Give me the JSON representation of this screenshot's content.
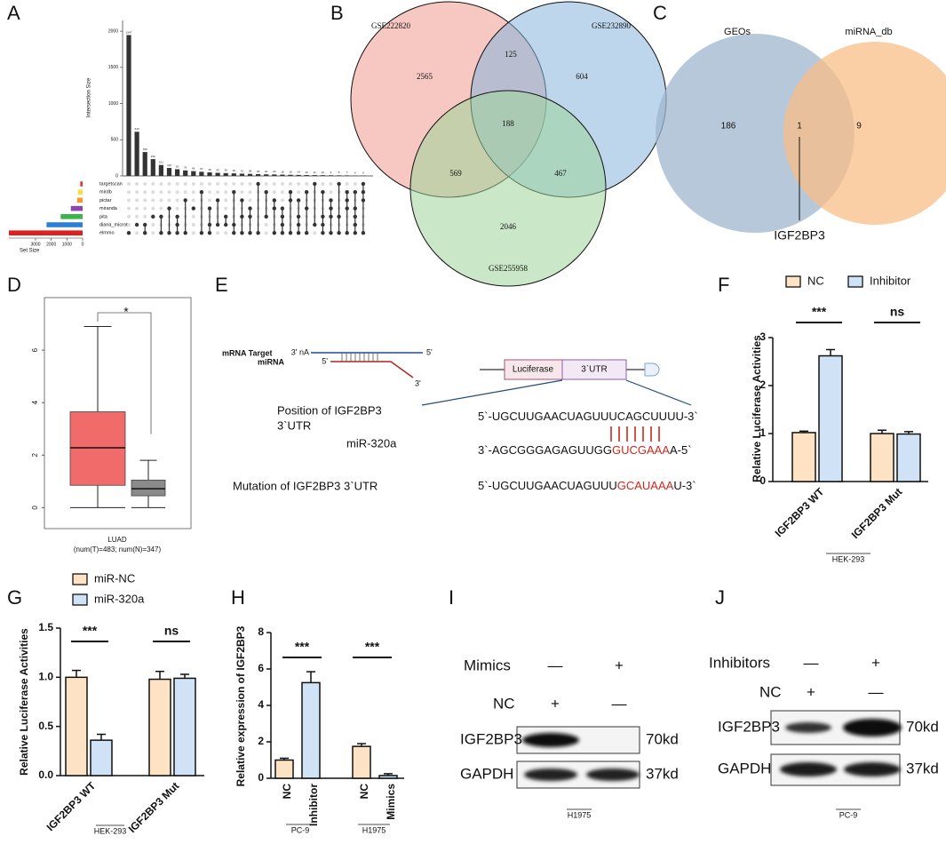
{
  "panel_labels": [
    "A",
    "B",
    "C",
    "D",
    "E",
    "F",
    "G",
    "H",
    "I",
    "J"
  ],
  "chart_data": [
    {
      "type": "upset",
      "y_label": "Intersection Size",
      "x_label": "Set Size",
      "color": "#333333",
      "ylim": [
        0,
        2100
      ],
      "yticks": [
        0,
        500,
        1000,
        1500,
        2000
      ],
      "values": [
        1947,
        610,
        330,
        232,
        151,
        110,
        92,
        76,
        66,
        57,
        49,
        43,
        39,
        35,
        31,
        28,
        25,
        22,
        20,
        18,
        16,
        14,
        12,
        11,
        10,
        9,
        8,
        7,
        6,
        5
      ],
      "members": [
        [
          6
        ],
        [
          5
        ],
        [
          5,
          6
        ],
        [
          4
        ],
        [
          4,
          6
        ],
        [
          3,
          6
        ],
        [
          4,
          5,
          6
        ],
        [
          2,
          6
        ],
        [
          3
        ],
        [
          1,
          6
        ],
        [
          3,
          5,
          6
        ],
        [
          2,
          5
        ],
        [
          4,
          5
        ],
        [
          1,
          5,
          6
        ],
        [
          2,
          4,
          6
        ],
        [
          3,
          4,
          6
        ],
        [
          0,
          6
        ],
        [
          1,
          4
        ],
        [
          2,
          3,
          6
        ],
        [
          3,
          4,
          5,
          6
        ],
        [
          1,
          2,
          6
        ],
        [
          2,
          4,
          5,
          6
        ],
        [
          1,
          3,
          6
        ],
        [
          0,
          5
        ],
        [
          1,
          4,
          5,
          6
        ],
        [
          2,
          3,
          4,
          6
        ],
        [
          0,
          4,
          6
        ],
        [
          1,
          2,
          3,
          6
        ],
        [
          1,
          3,
          4,
          5,
          6
        ],
        [
          0,
          1,
          2,
          6
        ]
      ],
      "sets": [
        "targetscan",
        "mirdb",
        "pictar",
        "miranda",
        "pita",
        "diana_microt",
        "elmmo"
      ],
      "set_colors": [
        "#e8332a",
        "#f5e13a",
        "#f39a1f",
        "#8e44ad",
        "#3cb44b",
        "#2d7fd3",
        "#e02020"
      ],
      "set_sizes": [
        150,
        300,
        350,
        750,
        1400,
        2300,
        4700
      ],
      "xlim": [
        0,
        4700
      ],
      "xticks": [
        0,
        1000,
        2000,
        3000
      ]
    },
    {
      "type": "venn3",
      "sets": [
        "GSE222820",
        "GSE232890",
        "GSE255958"
      ],
      "colors": [
        "#f19a8f",
        "#86b4dc",
        "#9fd69a"
      ],
      "values": [
        2565,
        125,
        604,
        188,
        569,
        467,
        2046
      ]
    },
    {
      "type": "venn2",
      "sets": [
        "GEOs",
        "miRNA_db"
      ],
      "colors": [
        "#9fb5cf",
        "#f8bf87"
      ],
      "values": [
        186,
        1,
        9
      ],
      "annotation": "IGF2BP3"
    },
    {
      "type": "box",
      "x_label": "LUAD",
      "subtitle": "(num(T)=483; num(N)=347)",
      "annotation": "*",
      "ylim": [
        -0.8,
        8
      ],
      "yticks": [
        0,
        2,
        4,
        6
      ],
      "boxes": [
        {
          "whislo": 0,
          "q1": 0.85,
          "median": 2.28,
          "q3": 3.65,
          "whishi": 6.9,
          "color": "#f26b6b"
        },
        {
          "whislo": 0,
          "q1": 0.45,
          "median": 0.72,
          "q3": 1.05,
          "whishi": 1.8,
          "color": "#8a8a8a"
        }
      ]
    },
    {
      "type": "bar",
      "y_label": "Relative Luciferase Activities",
      "categories": [
        "IGF2BP3 WT",
        "IGF2BP3 Mut"
      ],
      "series": [
        {
          "name": "NC",
          "color": "#fde3c3",
          "values": [
            1.02,
            1.0
          ],
          "errors": [
            0.03,
            0.07
          ]
        },
        {
          "name": "Inhibitor",
          "color": "#cfe2f6",
          "values": [
            2.62,
            0.99
          ],
          "errors": [
            0.13,
            0.05
          ]
        }
      ],
      "ylim": [
        0,
        3
      ],
      "yticks": [
        0,
        1,
        2,
        3
      ],
      "significance": [
        "***",
        "ns"
      ],
      "groups": [
        "HEK-293"
      ]
    },
    {
      "type": "bar",
      "y_label": "Relative Luciferase Activities",
      "categories": [
        "IGF2BP3 WT",
        "IGF2BP3 Mut"
      ],
      "series": [
        {
          "name": "miR-NC",
          "color": "#fde3c3",
          "values": [
            1.0,
            0.98
          ],
          "errors": [
            0.07,
            0.08
          ]
        },
        {
          "name": "miR-320a",
          "color": "#cfe2f6",
          "values": [
            0.36,
            0.99
          ],
          "errors": [
            0.06,
            0.04
          ]
        }
      ],
      "ylim": [
        0,
        1.5
      ],
      "yticks": [
        {
          "value": 0,
          "label": "0.0"
        },
        0.5,
        {
          "value": 1,
          "label": "1.0"
        },
        1.5
      ],
      "significance": [
        "***",
        "ns"
      ],
      "groups": [
        "HEK-293"
      ]
    },
    {
      "type": "bar",
      "y_label": "Relative expression of IGF2BP3",
      "categories": [
        "NC",
        "Inhibitor",
        "NC",
        "Mimics"
      ],
      "values": [
        1.0,
        5.25,
        1.75,
        0.15
      ],
      "errors": [
        0.1,
        0.6,
        0.15,
        0.1
      ],
      "colors": [
        "#fde3c3",
        "#cfe2f6",
        "#fde3c3",
        "#cfe2f6"
      ],
      "ylim": [
        0,
        8
      ],
      "yticks": [
        0,
        2,
        4,
        6,
        8
      ],
      "significance": [
        "***",
        "***"
      ],
      "groups": [
        "PC-9",
        "H1975"
      ]
    }
  ],
  "diagram": {
    "mrna_label": "mRNA Target",
    "mirna_label": "miRNA",
    "mrna_ends": [
      "3' nA",
      "5'"
    ],
    "mirna_ends": [
      "5'",
      "3'"
    ],
    "construct": [
      "Luciferase",
      "3`UTR"
    ],
    "rows": [
      {
        "label": [
          "Position of IGF2BP3",
          "3`UTR"
        ],
        "parts": [
          "5`-UGCUUGAACUAGUUUCAGCUUUU-3`"
        ]
      },
      {
        "label": [
          "miR-320a"
        ],
        "parts": [
          "3`-AGCGGGAGAGUUGG",
          "GUCGAAA",
          "A-5`"
        ]
      },
      {
        "label": [
          "Mutation of IGF2BP3 3`UTR"
        ],
        "parts": [
          "5`-UGCUUGAACUAGUUU",
          "GCAUAAA",
          "U-3`"
        ]
      }
    ],
    "highlight_color": "#d0261c"
  },
  "blots": [
    {
      "rows": [
        {
          "name": "Mimics",
          "signs": [
            "—",
            "+"
          ]
        },
        {
          "name": "NC",
          "signs": [
            "+",
            "—"
          ]
        }
      ],
      "bands": [
        {
          "name": "IGF2BP3",
          "size": "70kd"
        },
        {
          "name": "GAPDH",
          "size": "37kd"
        }
      ],
      "cell_line": "H1975"
    },
    {
      "rows": [
        {
          "name": "Inhibitors",
          "signs": [
            "—",
            "+"
          ]
        },
        {
          "name": "NC",
          "signs": [
            "+",
            "—"
          ]
        }
      ],
      "bands": [
        {
          "name": "IGF2BP3",
          "size": "70kd"
        },
        {
          "name": "GAPDH",
          "size": "37kd"
        }
      ],
      "cell_line": "PC-9"
    }
  ]
}
